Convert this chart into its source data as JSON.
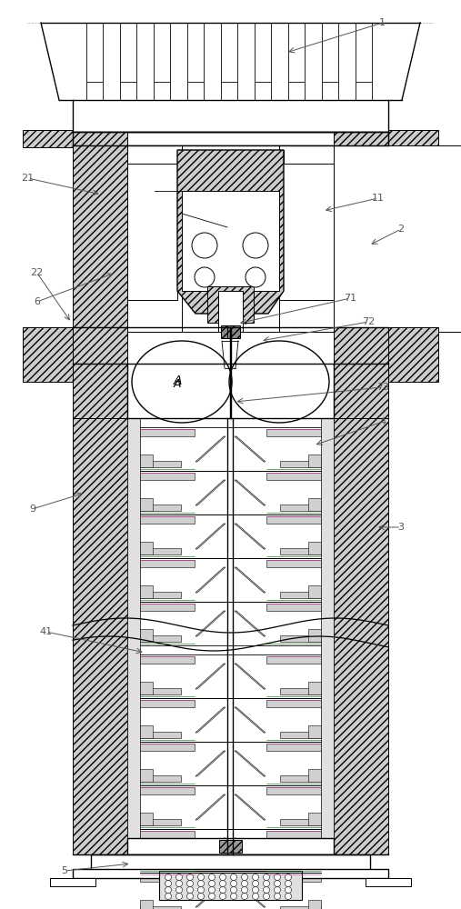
{
  "figsize": [
    5.07,
    10.0
  ],
  "dpi": 100,
  "bg_color": "#ffffff",
  "lc": "#000000",
  "label_color": "#555555",
  "hatch_fc": "#cccccc",
  "white": "#ffffff",
  "gray_light": "#e8e8e8",
  "gray_med": "#bbbbbb",
  "green": "#006600",
  "pink": "#cc44aa",
  "annotations": {
    "1": {
      "txt": [
        0.83,
        0.975
      ],
      "arr": [
        0.62,
        0.942
      ]
    },
    "21": {
      "txt": [
        0.06,
        0.804
      ],
      "arr": [
        0.22,
        0.786
      ]
    },
    "11": {
      "txt": [
        0.82,
        0.782
      ],
      "arr": [
        0.7,
        0.768
      ]
    },
    "2": {
      "txt": [
        0.87,
        0.748
      ],
      "arr": [
        0.8,
        0.73
      ]
    },
    "6": {
      "txt": [
        0.08,
        0.668
      ],
      "arr": [
        0.25,
        0.7
      ]
    },
    "22": {
      "txt": [
        0.08,
        0.7
      ],
      "arr": [
        0.155,
        0.645
      ]
    },
    "71": {
      "txt": [
        0.76,
        0.672
      ],
      "arr": [
        0.515,
        0.644
      ]
    },
    "72": {
      "txt": [
        0.8,
        0.646
      ],
      "arr": [
        0.565,
        0.625
      ]
    },
    "73": {
      "txt": [
        0.83,
        0.574
      ],
      "arr": [
        0.508,
        0.558
      ]
    },
    "4": {
      "txt": [
        0.83,
        0.536
      ],
      "arr": [
        0.68,
        0.51
      ]
    },
    "9": {
      "txt": [
        0.07,
        0.44
      ],
      "arr": [
        0.185,
        0.458
      ]
    },
    "3": {
      "txt": [
        0.87,
        0.42
      ],
      "arr": [
        0.815,
        0.42
      ]
    },
    "41": {
      "txt": [
        0.1,
        0.305
      ],
      "arr": [
        0.315,
        0.282
      ]
    },
    "5": {
      "txt": [
        0.14,
        0.042
      ],
      "arr": [
        0.285,
        0.05
      ]
    },
    "A": {
      "txt": [
        0.34,
        0.58
      ],
      "arr": null
    }
  }
}
